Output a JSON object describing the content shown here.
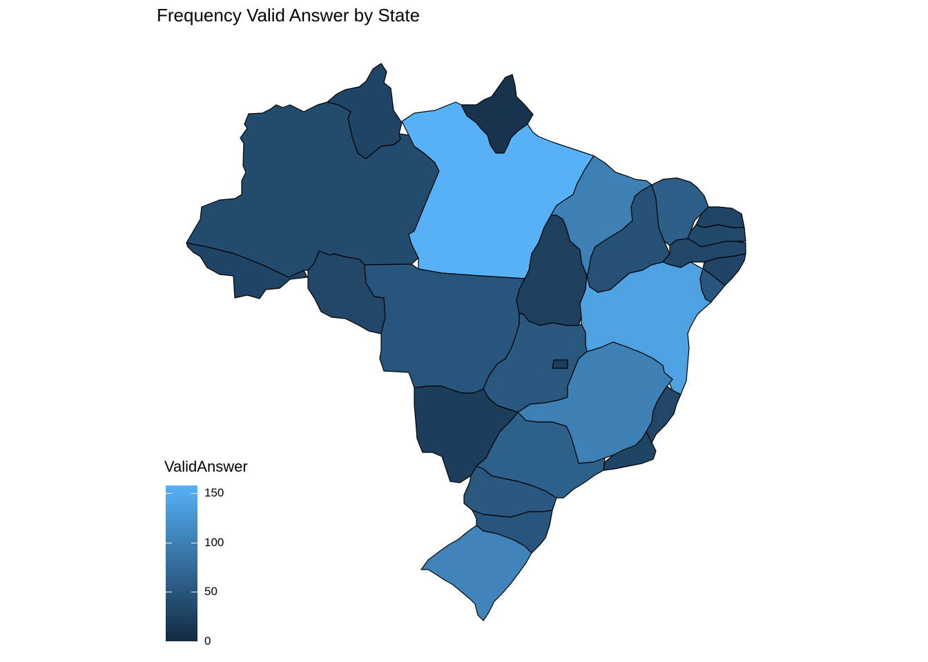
{
  "title": "Frequency Valid Answer by State",
  "legend": {
    "title": "ValidAnswer",
    "ticks": [
      "150",
      "100",
      "50",
      "0"
    ],
    "tick_values": [
      150,
      100,
      50,
      0
    ],
    "min": 0,
    "max": 158,
    "color_low": "#132b43",
    "color_high": "#56b1f7"
  },
  "chart_data": {
    "type": "choropleth",
    "title": "Frequency Valid Answer by State",
    "fill_variable": "ValidAnswer",
    "scale_range": [
      0,
      158
    ],
    "regions": [
      {
        "state": "AC",
        "value": 30
      },
      {
        "state": "AM",
        "value": 38
      },
      {
        "state": "RR",
        "value": 30
      },
      {
        "state": "AP",
        "value": 10
      },
      {
        "state": "PA",
        "value": 158
      },
      {
        "state": "RO",
        "value": 32
      },
      {
        "state": "MT",
        "value": 50
      },
      {
        "state": "TO",
        "value": 25
      },
      {
        "state": "MA",
        "value": 100
      },
      {
        "state": "PI",
        "value": 45
      },
      {
        "state": "CE",
        "value": 60
      },
      {
        "state": "RN",
        "value": 30
      },
      {
        "state": "PB",
        "value": 35
      },
      {
        "state": "PE",
        "value": 32
      },
      {
        "state": "AL",
        "value": 30
      },
      {
        "state": "SE",
        "value": 50
      },
      {
        "state": "BA",
        "value": 140
      },
      {
        "state": "GO",
        "value": 52
      },
      {
        "state": "DF",
        "value": 20
      },
      {
        "state": "MS",
        "value": 22
      },
      {
        "state": "MG",
        "value": 100
      },
      {
        "state": "ES",
        "value": 32
      },
      {
        "state": "RJ",
        "value": 28
      },
      {
        "state": "SP",
        "value": 62
      },
      {
        "state": "PR",
        "value": 52
      },
      {
        "state": "SC",
        "value": 50
      },
      {
        "state": "RS",
        "value": 105
      }
    ]
  }
}
